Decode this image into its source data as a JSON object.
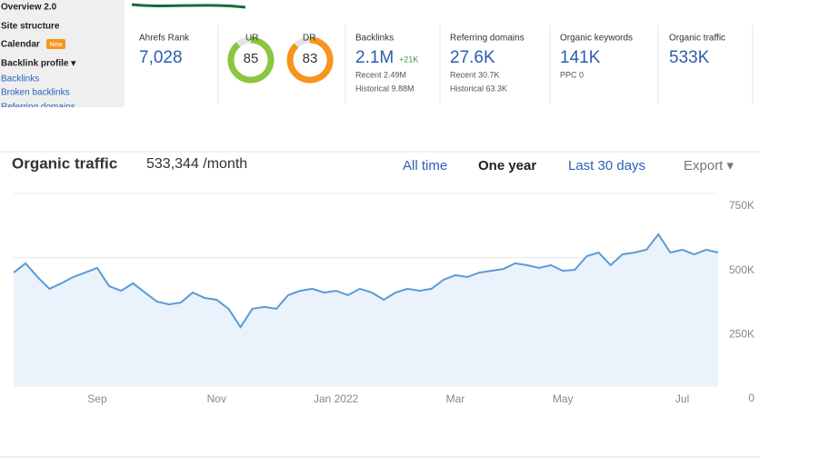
{
  "sidebar": {
    "items": [
      "Overview 2.0",
      "Site structure",
      "Calendar",
      "Backlink profile ▾",
      "Backlinks",
      "Broken backlinks",
      "Referring domains"
    ],
    "badge": "New"
  },
  "metrics": [
    {
      "label": "Ahrefs Rank",
      "value": "7,028"
    },
    {
      "label": "UR",
      "value": 85
    },
    {
      "label": "DR",
      "value": 83
    },
    {
      "label": "Backlinks",
      "value": "2.1M",
      "change": "+21K",
      "details": [
        "Recent 2.49M",
        "Historical 9.88M"
      ]
    },
    {
      "label": "Referring domains",
      "value": "27.6K",
      "details": [
        "Recent 30.7K",
        "Historical 63.3K"
      ]
    },
    {
      "label": "Organic keywords",
      "value": "141K",
      "details": [
        "PPC 0"
      ]
    },
    {
      "label": "Organic traffic",
      "value": "533K"
    }
  ],
  "chart_data": {
    "type": "line",
    "title": "Organic traffic",
    "subtitle": "533,344 /month",
    "controls": [
      "All time",
      "One year",
      "Last 30 days",
      "Export ▾"
    ],
    "selected_control": 1,
    "categories": [
      null,
      null,
      null,
      null,
      null,
      null,
      null,
      "Sep",
      null,
      null,
      null,
      null,
      null,
      null,
      null,
      null,
      null,
      "Nov",
      null,
      null,
      null,
      null,
      null,
      null,
      null,
      null,
      null,
      "Jan 2022",
      null,
      null,
      null,
      null,
      null,
      null,
      null,
      null,
      null,
      "Mar",
      null,
      null,
      null,
      null,
      null,
      null,
      null,
      null,
      "May",
      null,
      null,
      null,
      null,
      null,
      null,
      null,
      null,
      null,
      "Jul",
      null,
      null,
      null
    ],
    "values": [
      442000,
      478000,
      425000,
      379000,
      400000,
      425000,
      442000,
      460000,
      389000,
      371000,
      400000,
      364000,
      329000,
      318000,
      325000,
      364000,
      343000,
      336000,
      301000,
      230000,
      301000,
      308000,
      301000,
      354000,
      371000,
      379000,
      364000,
      371000,
      354000,
      379000,
      364000,
      336000,
      364000,
      379000,
      371000,
      379000,
      414000,
      432000,
      425000,
      442000,
      449000,
      456000,
      478000,
      471000,
      460000,
      471000,
      449000,
      453000,
      506000,
      520000,
      471000,
      513000,
      520000,
      531000,
      591000,
      520000,
      531000,
      513000,
      531000,
      520000
    ],
    "color": "#5b9bd5",
    "area": true,
    "ylim": [
      0,
      750000
    ],
    "yticks": [
      0,
      {
        "value": 250000,
        "label": "250K"
      },
      {
        "value": 500000,
        "label": "500K"
      },
      {
        "value": 750000,
        "label": "750K"
      }
    ],
    "grid": true
  }
}
